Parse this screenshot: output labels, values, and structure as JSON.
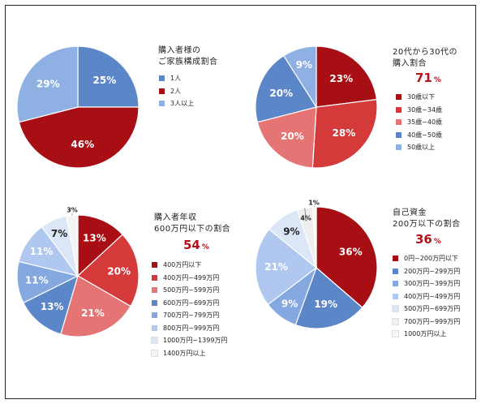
{
  "chart_data": [
    {
      "type": "pie",
      "title": "購入者様の\nご家族構成割合",
      "categories": [
        "1人",
        "2人",
        "3人以上"
      ],
      "values": [
        25,
        46,
        29
      ],
      "labels": [
        "25%",
        "46%",
        "29%"
      ],
      "colors": [
        "#5b86c7",
        "#a80f14",
        "#8fb0e2"
      ],
      "legend": "right"
    },
    {
      "type": "pie",
      "title": "20代から30代の\n購入割合",
      "highlight": "71",
      "highlight_unit": "%",
      "categories": [
        "30歳以下",
        "30歳~34歳",
        "35歳~40歳",
        "40歳~50歳",
        "50歳以上"
      ],
      "values": [
        23,
        28,
        20,
        20,
        9
      ],
      "labels": [
        "23%",
        "28%",
        "20%",
        "20%",
        "9%"
      ],
      "colors": [
        "#a80f14",
        "#d43a3a",
        "#e57474",
        "#5b86c7",
        "#8fb0e2"
      ],
      "legend": "right"
    },
    {
      "type": "pie",
      "title": "購入者年収\n600万円以下の割合",
      "highlight": "54",
      "highlight_unit": "%",
      "categories": [
        "400万円以下",
        "400万円~499万円",
        "500万円~599万円",
        "600万円~699万円",
        "700万円~799万円",
        "800万円~999万円",
        "1000万円~1399万円",
        "1400万円以上"
      ],
      "values": [
        13,
        20,
        21,
        13,
        11,
        11,
        7,
        3
      ],
      "labels": [
        "13%",
        "20%",
        "21%",
        "13%",
        "11%",
        "11%",
        "7%",
        "3%"
      ],
      "colors": [
        "#a80f14",
        "#d43a3a",
        "#e57474",
        "#5b86c7",
        "#86a8e0",
        "#b0c8ef",
        "#dbe6f7",
        "#f4f4f4"
      ],
      "legend": "right"
    },
    {
      "type": "pie",
      "title": "自己資金\n200万以下の割合",
      "highlight": "36",
      "highlight_unit": "%",
      "categories": [
        "0円~200万円以下",
        "200万円~299万円",
        "300万円~399万円",
        "400万円~499万円",
        "500万円~699万円",
        "700万円~999万円",
        "1000万円以上"
      ],
      "values": [
        36,
        19,
        9,
        21,
        9,
        4,
        1
      ],
      "labels": [
        "36%",
        "19%",
        "9%",
        "21%",
        "9%",
        "4%",
        "1%"
      ],
      "colors": [
        "#a80f14",
        "#5b86c7",
        "#86a8e0",
        "#b0c8ef",
        "#dbe6f7",
        "#eeeeee",
        "#f7f7f7"
      ],
      "legend": "right"
    }
  ]
}
